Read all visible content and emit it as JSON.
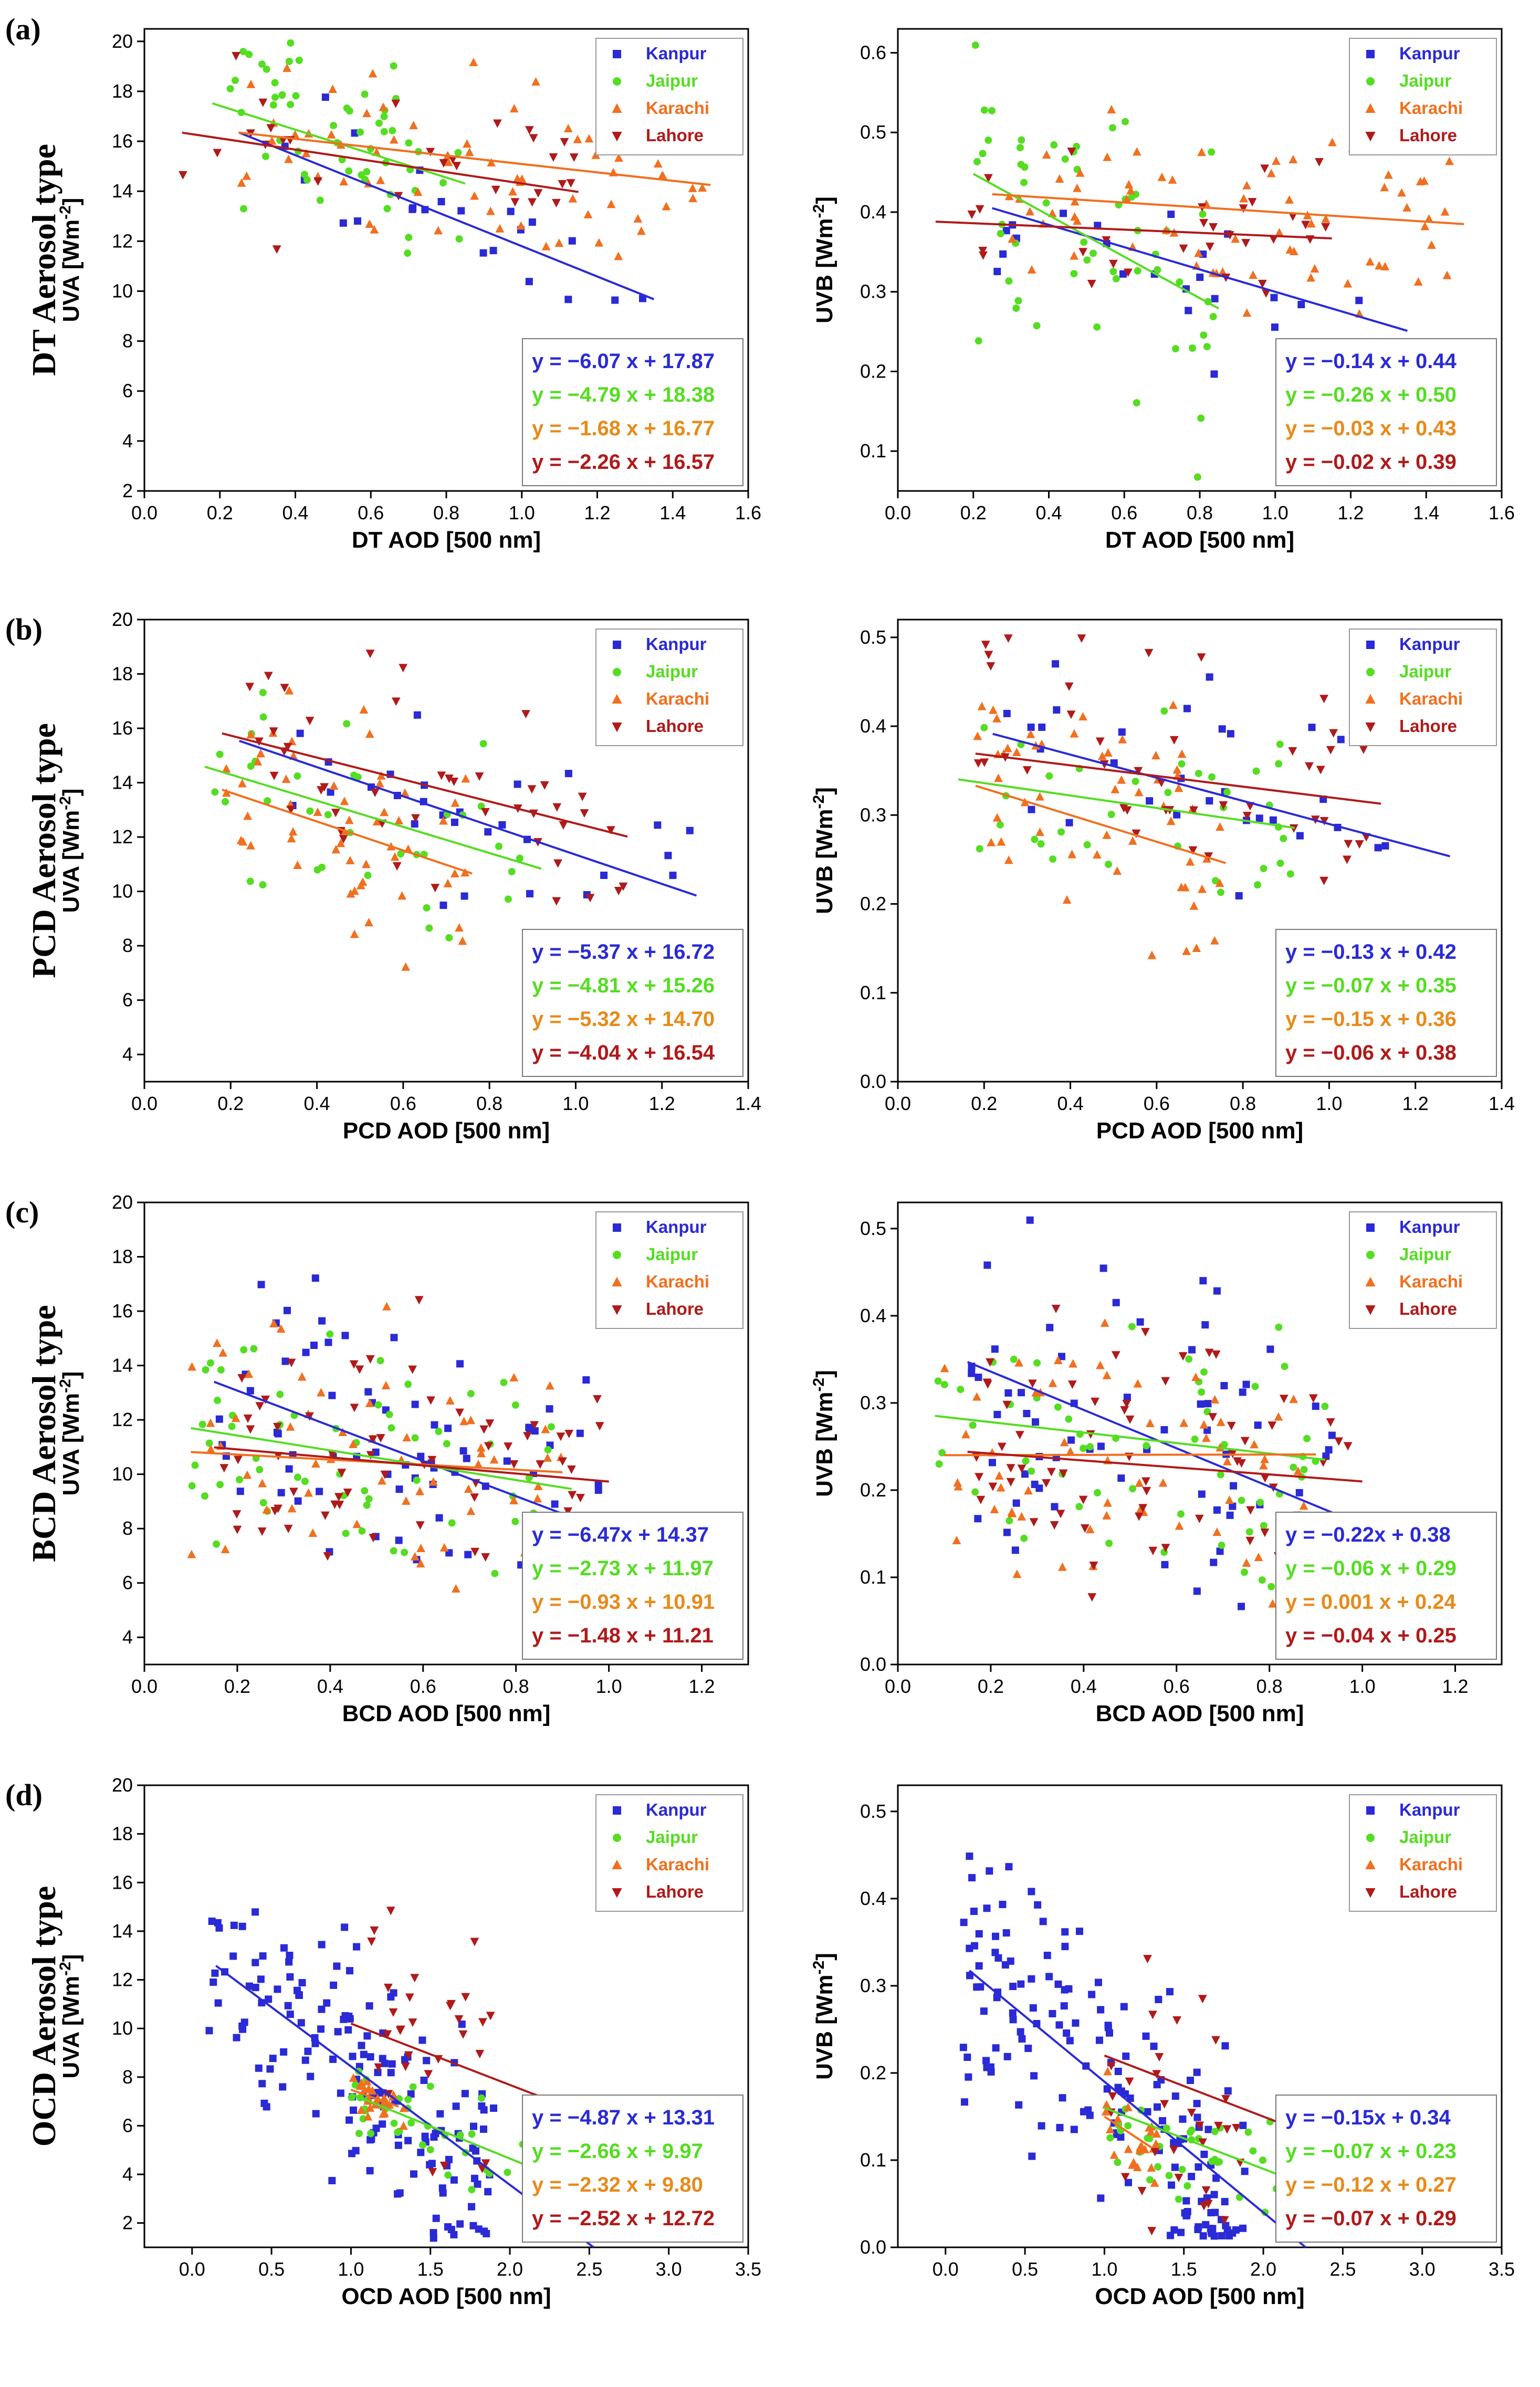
{
  "colors": {
    "Kanpur": "#2a2ad6",
    "Jaipur": "#55dd22",
    "Karachi": "#f07020",
    "Lahore": "#b01a1a"
  },
  "legend": [
    "Kanpur",
    "Jaipur",
    "Karachi",
    "Lahore"
  ],
  "rows": [
    {
      "label": "(a)",
      "title": "DT Aerosol type"
    },
    {
      "label": "(b)",
      "title": "PCD Aerosol type"
    },
    {
      "label": "(c)",
      "title": "BCD Aerosol type"
    },
    {
      "label": "(d)",
      "title": "OCD Aerosol type"
    }
  ],
  "chart_data": [
    {
      "type": "scatter",
      "id": "a-uva",
      "xlabel": "DT AOD [500 nm]",
      "ylabel": "UVA [Wm-2]",
      "xlim": [
        0,
        1.6
      ],
      "ylim": [
        2,
        20.5
      ],
      "xticks": [
        "0.0",
        "0.2",
        "0.4",
        "0.6",
        "0.8",
        "1.0",
        "1.2",
        "1.4",
        "1.6"
      ],
      "yticks": [
        "2",
        "4",
        "6",
        "8",
        "10",
        "12",
        "14",
        "16",
        "18",
        "20"
      ],
      "fits": [
        {
          "site": "Kanpur",
          "m": -6.07,
          "b": 17.87,
          "x": [
            0.25,
            1.35
          ],
          "eq": "y = −6.07 x + 17.87"
        },
        {
          "site": "Jaipur",
          "m": -4.79,
          "b": 18.38,
          "x": [
            0.18,
            0.85
          ],
          "eq": "y = −4.79 x + 18.38"
        },
        {
          "site": "Karachi",
          "m": -1.68,
          "b": 16.77,
          "x": [
            0.25,
            1.5
          ],
          "eq": "y = −1.68 x + 16.77"
        },
        {
          "site": "Lahore",
          "m": -2.26,
          "b": 16.57,
          "x": [
            0.1,
            1.15
          ],
          "eq": "y = −2.26 x + 16.57"
        }
      ],
      "scatter": {
        "Kanpur": {
          "n": 22,
          "x": [
            0.25,
            1.35
          ],
          "spread": 1.4
        },
        "Jaipur": {
          "n": 55,
          "x": [
            0.2,
            0.85
          ],
          "spread": 1.7
        },
        "Karachi": {
          "n": 70,
          "x": [
            0.25,
            1.5
          ],
          "spread": 1.6
        },
        "Lahore": {
          "n": 30,
          "x": [
            0.1,
            1.15
          ],
          "spread": 1.7
        }
      }
    },
    {
      "type": "scatter",
      "id": "a-uvb",
      "xlabel": "DT AOD [500 nm]",
      "ylabel": "UVB [Wm-2]",
      "xlim": [
        0,
        1.6
      ],
      "ylim": [
        0.05,
        0.63
      ],
      "xticks": [
        "0.0",
        "0.2",
        "0.4",
        "0.6",
        "0.8",
        "1.0",
        "1.2",
        "1.4",
        "1.6"
      ],
      "yticks": [
        "0.1",
        "0.2",
        "0.3",
        "0.4",
        "0.5",
        "0.6"
      ],
      "fits": [
        {
          "site": "Kanpur",
          "m": -0.14,
          "b": 0.44,
          "x": [
            0.25,
            1.35
          ],
          "eq": "y = −0.14 x + 0.44"
        },
        {
          "site": "Jaipur",
          "m": -0.26,
          "b": 0.5,
          "x": [
            0.2,
            0.85
          ],
          "eq": "y = −0.26 x + 0.50"
        },
        {
          "site": "Karachi",
          "m": -0.03,
          "b": 0.43,
          "x": [
            0.25,
            1.5
          ],
          "eq": "y = −0.03 x + 0.43"
        },
        {
          "site": "Lahore",
          "m": -0.02,
          "b": 0.39,
          "x": [
            0.1,
            1.15
          ],
          "eq": "y = −0.02 x + 0.39"
        }
      ],
      "scatter": {
        "Kanpur": {
          "n": 22,
          "x": [
            0.25,
            1.35
          ],
          "spread": 0.05
        },
        "Jaipur": {
          "n": 55,
          "x": [
            0.2,
            0.85
          ],
          "spread": 0.1
        },
        "Karachi": {
          "n": 70,
          "x": [
            0.25,
            1.5
          ],
          "spread": 0.05
        },
        "Lahore": {
          "n": 30,
          "x": [
            0.1,
            1.15
          ],
          "spread": 0.05
        }
      }
    },
    {
      "type": "scatter",
      "id": "b-uva",
      "xlabel": "PCD AOD [500 nm]",
      "ylabel": "UVA [Wm-2]",
      "xlim": [
        0,
        1.4
      ],
      "ylim": [
        3,
        20
      ],
      "xticks": [
        "0.0",
        "0.2",
        "0.4",
        "0.6",
        "0.8",
        "1.0",
        "1.2",
        "1.4"
      ],
      "yticks": [
        "4",
        "6",
        "8",
        "10",
        "12",
        "14",
        "16",
        "18",
        "20"
      ],
      "fits": [
        {
          "site": "Kanpur",
          "m": -5.37,
          "b": 16.72,
          "x": [
            0.22,
            1.28
          ],
          "eq": "y = −5.37 x + 16.72"
        },
        {
          "site": "Jaipur",
          "m": -4.81,
          "b": 15.26,
          "x": [
            0.14,
            0.92
          ],
          "eq": "y = −4.81 x + 15.26"
        },
        {
          "site": "Karachi",
          "m": -5.32,
          "b": 14.7,
          "x": [
            0.18,
            0.76
          ],
          "eq": "y = −5.32 x + 14.70"
        },
        {
          "site": "Lahore",
          "m": -4.04,
          "b": 16.54,
          "x": [
            0.18,
            1.12
          ],
          "eq": "y = −4.04 x + 16.54"
        }
      ],
      "scatter": {
        "Kanpur": {
          "n": 30,
          "x": [
            0.25,
            1.27
          ],
          "spread": 1.6
        },
        "Jaipur": {
          "n": 35,
          "x": [
            0.14,
            0.92
          ],
          "spread": 1.7
        },
        "Karachi": {
          "n": 55,
          "x": [
            0.18,
            0.76
          ],
          "spread": 2.0
        },
        "Lahore": {
          "n": 45,
          "x": [
            0.18,
            1.12
          ],
          "spread": 2.0
        }
      }
    },
    {
      "type": "scatter",
      "id": "b-uvb",
      "xlabel": "PCD AOD [500 nm]",
      "ylabel": "UVB [Wm-2]",
      "xlim": [
        0,
        1.4
      ],
      "ylim": [
        0,
        0.52
      ],
      "xticks": [
        "0.0",
        "0.2",
        "0.4",
        "0.6",
        "0.8",
        "1.0",
        "1.2",
        "1.4"
      ],
      "yticks": [
        "0.0",
        "0.1",
        "0.2",
        "0.3",
        "0.4",
        "0.5"
      ],
      "fits": [
        {
          "site": "Kanpur",
          "m": -0.13,
          "b": 0.42,
          "x": [
            0.22,
            1.28
          ],
          "eq": "y = −0.13 x + 0.42"
        },
        {
          "site": "Jaipur",
          "m": -0.07,
          "b": 0.35,
          "x": [
            0.14,
            0.92
          ],
          "eq": "y = −0.07 x + 0.35"
        },
        {
          "site": "Karachi",
          "m": -0.15,
          "b": 0.36,
          "x": [
            0.18,
            0.76
          ],
          "eq": "y = −0.15 x + 0.36"
        },
        {
          "site": "Lahore",
          "m": -0.06,
          "b": 0.38,
          "x": [
            0.18,
            1.12
          ],
          "eq": "y = −0.06 x + 0.38"
        }
      ],
      "scatter": {
        "Kanpur": {
          "n": 30,
          "x": [
            0.25,
            1.27
          ],
          "spread": 0.05
        },
        "Jaipur": {
          "n": 35,
          "x": [
            0.14,
            0.92
          ],
          "spread": 0.06
        },
        "Karachi": {
          "n": 55,
          "x": [
            0.18,
            0.76
          ],
          "spread": 0.07
        },
        "Lahore": {
          "n": 45,
          "x": [
            0.18,
            1.12
          ],
          "spread": 0.07
        }
      }
    },
    {
      "type": "scatter",
      "id": "c-uva",
      "xlabel": "BCD AOD [500 nm]",
      "ylabel": "UVA [Wm-2]",
      "xlim": [
        0,
        1.3
      ],
      "ylim": [
        3,
        20
      ],
      "xticks": [
        "0.0",
        "0.2",
        "0.4",
        "0.6",
        "0.8",
        "1.0",
        "1.2"
      ],
      "yticks": [
        "4",
        "6",
        "8",
        "10",
        "12",
        "14",
        "16",
        "18",
        "20"
      ],
      "fits": [
        {
          "site": "Kanpur",
          "m": -6.47,
          "b": 14.37,
          "x": [
            0.15,
            1.0
          ],
          "eq": "y = −6.47x + 14.37"
        },
        {
          "site": "Jaipur",
          "m": -2.73,
          "b": 11.97,
          "x": [
            0.1,
            0.92
          ],
          "eq": "y = −2.73 x + 11.97"
        },
        {
          "site": "Karachi",
          "m": -0.93,
          "b": 10.91,
          "x": [
            0.1,
            0.9
          ],
          "eq": "y = −0.93 x + 10.91"
        },
        {
          "site": "Lahore",
          "m": -1.48,
          "b": 11.21,
          "x": [
            0.15,
            1.0
          ],
          "eq": "y = −1.48 x + 11.21"
        }
      ],
      "scatter": {
        "Kanpur": {
          "n": 70,
          "x": [
            0.15,
            1.0
          ],
          "spread": 2.6
        },
        "Jaipur": {
          "n": 60,
          "x": [
            0.08,
            0.92
          ],
          "spread": 2.2
        },
        "Karachi": {
          "n": 60,
          "x": [
            0.1,
            0.9
          ],
          "spread": 2.2
        },
        "Lahore": {
          "n": 70,
          "x": [
            0.15,
            1.0
          ],
          "spread": 2.4
        }
      }
    },
    {
      "type": "scatter",
      "id": "c-uvb",
      "xlabel": "BCD AOD [500 nm]",
      "ylabel": "UVB [Wm-2]",
      "xlim": [
        0,
        1.3
      ],
      "ylim": [
        0,
        0.53
      ],
      "xticks": [
        "0.0",
        "0.2",
        "0.4",
        "0.6",
        "0.8",
        "1.0",
        "1.2"
      ],
      "yticks": [
        "0.0",
        "0.1",
        "0.2",
        "0.3",
        "0.4",
        "0.5"
      ],
      "fits": [
        {
          "site": "Kanpur",
          "m": -0.22,
          "b": 0.38,
          "x": [
            0.15,
            1.0
          ],
          "eq": "y = −0.22x + 0.38"
        },
        {
          "site": "Jaipur",
          "m": -0.06,
          "b": 0.29,
          "x": [
            0.08,
            0.92
          ],
          "eq": "y = −0.06 x + 0.29"
        },
        {
          "site": "Karachi",
          "m": 0.001,
          "b": 0.24,
          "x": [
            0.1,
            0.9
          ],
          "eq": "y = 0.001 x + 0.24"
        },
        {
          "site": "Lahore",
          "m": -0.04,
          "b": 0.25,
          "x": [
            0.15,
            1.0
          ],
          "eq": "y = −0.04 x + 0.25"
        }
      ],
      "scatter": {
        "Kanpur": {
          "n": 70,
          "x": [
            0.15,
            1.0
          ],
          "spread": 0.09
        },
        "Jaipur": {
          "n": 60,
          "x": [
            0.08,
            0.92
          ],
          "spread": 0.08
        },
        "Karachi": {
          "n": 60,
          "x": [
            0.1,
            0.9
          ],
          "spread": 0.08
        },
        "Lahore": {
          "n": 70,
          "x": [
            0.15,
            1.0
          ],
          "spread": 0.08
        }
      }
    },
    {
      "type": "scatter",
      "id": "d-uva",
      "xlabel": "OCD AOD [500 nm]",
      "ylabel": "UVA [Wm-2]",
      "xlim": [
        -0.3,
        3.5
      ],
      "ylim": [
        1,
        20
      ],
      "xticks": [
        "0.0",
        "0.5",
        "1.0",
        "1.5",
        "2.0",
        "2.5",
        "3.0",
        "3.5"
      ],
      "yticks": [
        "2",
        "4",
        "6",
        "8",
        "10",
        "12",
        "14",
        "16",
        "18",
        "20"
      ],
      "fits": [
        {
          "site": "Kanpur",
          "m": -4.87,
          "b": 13.31,
          "x": [
            0.15,
            2.55
          ],
          "eq": "y = −4.87 x + 13.31"
        },
        {
          "site": "Jaipur",
          "m": -2.66,
          "b": 9.97,
          "x": [
            1.0,
            2.35
          ],
          "eq": "y = −2.66 x + 9.97"
        },
        {
          "site": "Karachi",
          "m": -2.32,
          "b": 9.8,
          "x": [
            1.0,
            1.3
          ],
          "eq": "y = −2.32 x + 9.80"
        },
        {
          "site": "Lahore",
          "m": -2.52,
          "b": 12.72,
          "x": [
            1.0,
            2.4
          ],
          "eq": "y = −2.52 x + 12.72"
        }
      ],
      "scatter": {
        "Kanpur": {
          "n": 160,
          "x": [
            0.1,
            1.9
          ],
          "spread": 2.3
        },
        "Jaipur": {
          "n": 35,
          "x": [
            1.0,
            2.1
          ],
          "spread": 1.0
        },
        "Karachi": {
          "n": 25,
          "x": [
            1.0,
            1.35
          ],
          "spread": 0.5
        },
        "Lahore": {
          "n": 30,
          "x": [
            1.0,
            1.9
          ],
          "spread": 2.2
        }
      }
    },
    {
      "type": "scatter",
      "id": "d-uvb",
      "xlabel": "OCD AOD [500 nm]",
      "ylabel": "UVB [Wm-2]",
      "xlim": [
        -0.3,
        3.5
      ],
      "ylim": [
        0,
        0.53
      ],
      "xticks": [
        "0.0",
        "0.5",
        "1.0",
        "1.5",
        "2.0",
        "2.5",
        "3.0",
        "3.5"
      ],
      "yticks": [
        "0.0",
        "0.1",
        "0.2",
        "0.3",
        "0.4",
        "0.5"
      ],
      "fits": [
        {
          "site": "Kanpur",
          "m": -0.15,
          "b": 0.34,
          "x": [
            0.15,
            2.3
          ],
          "eq": "y = −0.15x + 0.34"
        },
        {
          "site": "Jaipur",
          "m": -0.07,
          "b": 0.23,
          "x": [
            1.0,
            2.35
          ],
          "eq": "y = −0.07 x + 0.23"
        },
        {
          "site": "Karachi",
          "m": -0.12,
          "b": 0.27,
          "x": [
            1.0,
            1.3
          ],
          "eq": "y = −0.12 x + 0.27"
        },
        {
          "site": "Lahore",
          "m": -0.07,
          "b": 0.29,
          "x": [
            1.0,
            2.35
          ],
          "eq": "y = −0.07 x + 0.29"
        }
      ],
      "scatter": {
        "Kanpur": {
          "n": 160,
          "x": [
            0.1,
            1.9
          ],
          "spread": 0.07
        },
        "Jaipur": {
          "n": 35,
          "x": [
            1.0,
            2.1
          ],
          "spread": 0.03
        },
        "Karachi": {
          "n": 25,
          "x": [
            1.0,
            1.35
          ],
          "spread": 0.02
        },
        "Lahore": {
          "n": 30,
          "x": [
            1.0,
            1.9
          ],
          "spread": 0.08
        }
      }
    }
  ]
}
